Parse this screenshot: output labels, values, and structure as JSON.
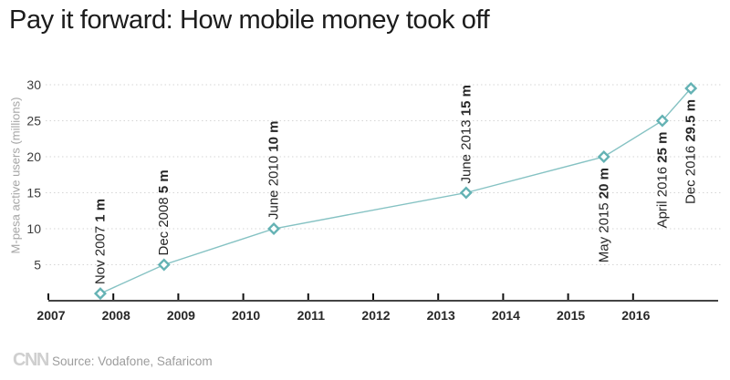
{
  "header": {
    "title": "Pay it forward: How mobile money took off"
  },
  "chart_data": {
    "type": "line",
    "title": "Pay it forward: How mobile money took off",
    "xlabel": "",
    "ylabel": "M-pesa active users (millions)",
    "series": [
      {
        "name": "M-pesa active users (millions)",
        "points": [
          {
            "date_label": "Nov 2007",
            "value": 1,
            "value_label": "1 m",
            "x_year": 2007.8,
            "label_side": "above"
          },
          {
            "date_label": "Dec 2008",
            "value": 5,
            "value_label": "5 m",
            "x_year": 2008.78,
            "label_side": "above"
          },
          {
            "date_label": "June 2010",
            "value": 10,
            "value_label": "10 m",
            "x_year": 2010.47,
            "label_side": "above"
          },
          {
            "date_label": "June 2013",
            "value": 15,
            "value_label": "15 m",
            "x_year": 2013.43,
            "label_side": "above"
          },
          {
            "date_label": "May 2015",
            "value": 20,
            "value_label": "20 m",
            "x_year": 2015.55,
            "label_side": "below"
          },
          {
            "date_label": "April 2016",
            "value": 25,
            "value_label": "25 m",
            "x_year": 2016.45,
            "label_side": "below"
          },
          {
            "date_label": "Dec 2016",
            "value": 29.5,
            "value_label": "29.5 m",
            "x_year": 2016.89,
            "label_side": "below"
          }
        ]
      }
    ],
    "x_ticks": [
      2007,
      2008,
      2009,
      2010,
      2011,
      2012,
      2013,
      2014,
      2015,
      2016
    ],
    "y_ticks": [
      5,
      10,
      15,
      20,
      25,
      30
    ],
    "ylim": [
      0,
      30
    ],
    "xlim": [
      2007,
      2017.3
    ],
    "grid": "horizontal-dotted",
    "legend_position": "none",
    "marker": "open-diamond"
  },
  "footer": {
    "logo": "CNN",
    "source": "Source: Vodafone, Safaricom"
  },
  "colors": {
    "line": "#85c2c3",
    "marker_stroke": "#64b2b4",
    "marker_fill": "#ffffff",
    "grid": "#d6d6d6",
    "axis_line": "#444444",
    "tick": "#111111",
    "title_text": "#1c1c1c",
    "xtick_text": "#272727",
    "ytick_text": "#3d3d3d",
    "ylabel_text": "#a5a5a5",
    "source_text": "#9c9c9c",
    "logo_text": "#cfcfcf"
  }
}
